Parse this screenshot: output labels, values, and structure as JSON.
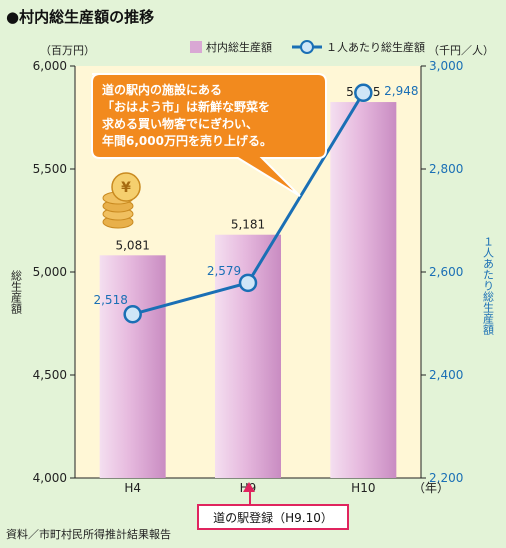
{
  "chart_data": {
    "type": "bar",
    "title": "●村内総生産額の推移",
    "categories": [
      "H4",
      "H9",
      "H10"
    ],
    "x_unit": "（年）",
    "y_left": {
      "unit": "（百万円）",
      "label": "総生産額",
      "ylim": [
        4000,
        6000
      ],
      "ticks": [
        "4,000",
        "4,500",
        "5,000",
        "5,500",
        "6,000"
      ],
      "tick_values": [
        4000,
        4500,
        5000,
        5500,
        6000
      ]
    },
    "y_right": {
      "unit": "（千円／人）",
      "label": "１人あたり総生産額",
      "ylim": [
        2200,
        3000
      ],
      "ticks": [
        "2,200",
        "2,400",
        "2,600",
        "2,800",
        "3,000"
      ],
      "tick_values": [
        2200,
        2400,
        2600,
        2800,
        3000
      ]
    },
    "series": [
      {
        "name": "村内総生産額",
        "type": "bar",
        "axis": "left",
        "values": [
          5081,
          5181,
          5825
        ],
        "labels": [
          "5,081",
          "5,181",
          "5,825"
        ],
        "color": "#d9a8d4"
      },
      {
        "name": "１人あたり総生産額",
        "type": "line",
        "axis": "right",
        "values": [
          2518,
          2579,
          2948
        ],
        "labels": [
          "2,518",
          "2,579",
          "2,948"
        ],
        "color": "#1a6fb5"
      }
    ],
    "grid": false,
    "legend_position": "top-right",
    "callout": {
      "lines": [
        "道の駅内の施設にある",
        "「おはよう市」は新鮮な野菜を",
        "求める買い物客でにぎわい、",
        "年間6,000万円を売り上げる。"
      ],
      "color": "#f28a1e"
    },
    "event_marker": {
      "category": "H9",
      "text": "道の駅登録（H9.10）",
      "color": "#e0245e"
    },
    "coin_icon": "yen-coin-stack-icon",
    "source_note": "資料／市町村民所得推計結果報告"
  }
}
